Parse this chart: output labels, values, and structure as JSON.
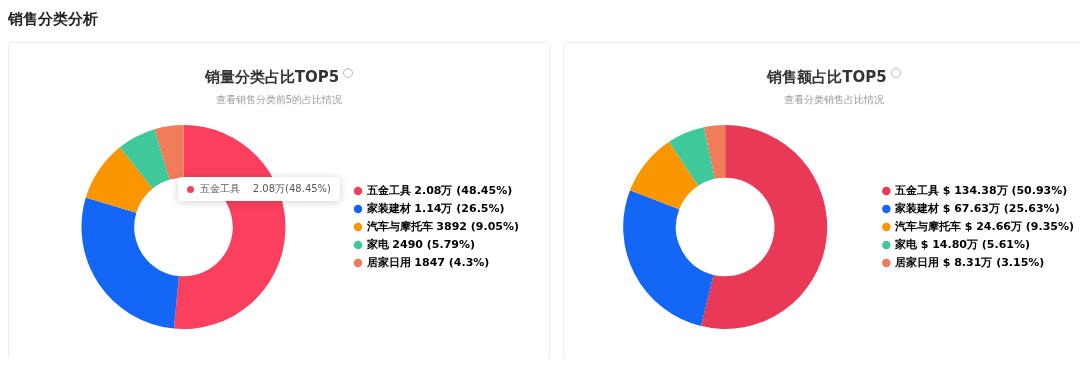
{
  "chart_data": [
    {
      "type": "other",
      "title": "销售分类分析"
    },
    {
      "type": "donut",
      "title": "销量分类占比TOP5",
      "subtitle": "查看销售分类前5的占比情况",
      "categories": [
        "五金工具",
        "家装建材",
        "汽车与摩托车",
        "家电",
        "居家日用"
      ],
      "values": [
        48.45,
        26.5,
        9.05,
        5.79,
        4.3
      ],
      "value_labels": [
        "2.08万 (48.45%)",
        "1.14万 (26.5%)",
        "3892 (9.05%)",
        "2490 (5.79%)",
        "1847 (4.3%)"
      ],
      "colors": [
        "#fb3f5e",
        "#1467f5",
        "#fa9600",
        "#3fc99b",
        "#f07c5a"
      ],
      "legend": "right",
      "annotations": [
        "五金工具    2.08万(48.45%)"
      ]
    },
    {
      "type": "donut",
      "title": "销售额占比TOP5",
      "subtitle": "查看分类销售占比情况",
      "categories": [
        "五金工具",
        "家装建材",
        "汽车与摩托车",
        "家电",
        "居家日用"
      ],
      "values": [
        50.93,
        25.63,
        9.35,
        5.61,
        3.15
      ],
      "value_labels": [
        "$ 134.38万 (50.93%)",
        "$ 67.63万 (25.63%)",
        "$ 24.66万 (9.35%)",
        "$ 14.80万 (5.61%)",
        "$ 8.31万 (3.15%)"
      ],
      "colors": [
        "#e83a56",
        "#1467f5",
        "#fa9600",
        "#3fc99b",
        "#f07c5a"
      ],
      "legend": "right"
    }
  ]
}
